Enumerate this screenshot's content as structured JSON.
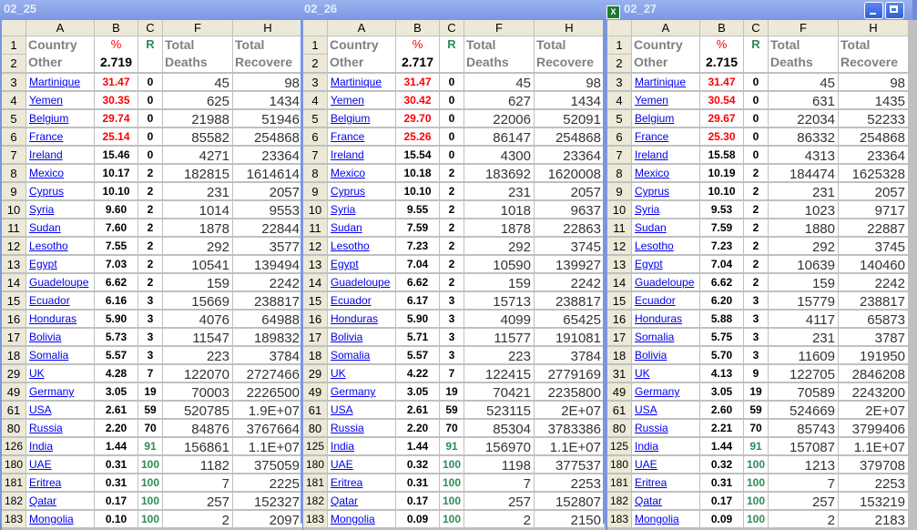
{
  "colors": {
    "pct_high": "#ff0000",
    "pct_normal": "#000000",
    "r_label": "#2e8b57",
    "r_high": "#2e8b57",
    "r_normal": "#000000",
    "link": "#0000ee"
  },
  "windows": [
    {
      "title": "02_25",
      "col_headers": [
        "A",
        "B",
        "C",
        "F",
        "H"
      ],
      "header": {
        "row1": "1",
        "row2": "2",
        "country": "Country",
        "other": "Other",
        "pct_label": "%",
        "pct_value": "2.719",
        "r_label": "R",
        "deaths_1": "Total",
        "deaths_2": "Deaths",
        "rec_1": "Total",
        "rec_2": "Recovere"
      },
      "rows": [
        [
          "3",
          "Martinique",
          "31.47",
          "0",
          "45",
          "98"
        ],
        [
          "4",
          "Yemen",
          "30.35",
          "0",
          "625",
          "1434"
        ],
        [
          "5",
          "Belgium",
          "29.74",
          "0",
          "21988",
          "51946"
        ],
        [
          "6",
          "France",
          "25.14",
          "0",
          "85582",
          "254868"
        ],
        [
          "7",
          "Ireland",
          "15.46",
          "0",
          "4271",
          "23364"
        ],
        [
          "8",
          "Mexico",
          "10.17",
          "2",
          "182815",
          "1614614"
        ],
        [
          "9",
          "Cyprus",
          "10.10",
          "2",
          "231",
          "2057"
        ],
        [
          "10",
          "Syria",
          "9.60",
          "2",
          "1014",
          "9553"
        ],
        [
          "11",
          "Sudan",
          "7.60",
          "2",
          "1878",
          "22844"
        ],
        [
          "12",
          "Lesotho",
          "7.55",
          "2",
          "292",
          "3577"
        ],
        [
          "13",
          "Egypt",
          "7.03",
          "2",
          "10541",
          "139494"
        ],
        [
          "14",
          "Guadeloupe",
          "6.62",
          "2",
          "159",
          "2242"
        ],
        [
          "15",
          "Ecuador",
          "6.16",
          "3",
          "15669",
          "238817"
        ],
        [
          "16",
          "Honduras",
          "5.90",
          "3",
          "4076",
          "64988"
        ],
        [
          "17",
          "Bolivia",
          "5.73",
          "3",
          "11547",
          "189832"
        ],
        [
          "18",
          "Somalia",
          "5.57",
          "3",
          "223",
          "3784"
        ],
        [
          "29",
          "UK",
          "4.28",
          "7",
          "122070",
          "2727466"
        ],
        [
          "49",
          "Germany",
          "3.05",
          "19",
          "70003",
          "2226500"
        ],
        [
          "61",
          "USA",
          "2.61",
          "59",
          "520785",
          "1.9E+07"
        ],
        [
          "80",
          "Russia",
          "2.20",
          "70",
          "84876",
          "3767664"
        ],
        [
          "126",
          "India",
          "1.44",
          "91",
          "156861",
          "1.1E+07"
        ],
        [
          "180",
          "UAE",
          "0.31",
          "100",
          "1182",
          "375059"
        ],
        [
          "181",
          "Eritrea",
          "0.31",
          "100",
          "7",
          "2225"
        ],
        [
          "182",
          "Qatar",
          "0.17",
          "100",
          "257",
          "152327"
        ],
        [
          "183",
          "Mongolia",
          "0.10",
          "100",
          "2",
          "2097"
        ]
      ]
    },
    {
      "title": "02_26",
      "col_headers": [
        "A",
        "B",
        "C",
        "F",
        "H"
      ],
      "header": {
        "row1": "1",
        "row2": "2",
        "country": "Country",
        "other": "Other",
        "pct_label": "%",
        "pct_value": "2.717",
        "r_label": "R",
        "deaths_1": "Total",
        "deaths_2": "Deaths",
        "rec_1": "Total",
        "rec_2": "Recovere"
      },
      "rows": [
        [
          "3",
          "Martinique",
          "31.47",
          "0",
          "45",
          "98"
        ],
        [
          "4",
          "Yemen",
          "30.42",
          "0",
          "627",
          "1434"
        ],
        [
          "5",
          "Belgium",
          "29.70",
          "0",
          "22006",
          "52091"
        ],
        [
          "6",
          "France",
          "25.26",
          "0",
          "86147",
          "254868"
        ],
        [
          "7",
          "Ireland",
          "15.54",
          "0",
          "4300",
          "23364"
        ],
        [
          "8",
          "Mexico",
          "10.18",
          "2",
          "183692",
          "1620008"
        ],
        [
          "9",
          "Cyprus",
          "10.10",
          "2",
          "231",
          "2057"
        ],
        [
          "10",
          "Syria",
          "9.55",
          "2",
          "1018",
          "9637"
        ],
        [
          "11",
          "Sudan",
          "7.59",
          "2",
          "1878",
          "22863"
        ],
        [
          "12",
          "Lesotho",
          "7.23",
          "2",
          "292",
          "3745"
        ],
        [
          "13",
          "Egypt",
          "7.04",
          "2",
          "10590",
          "139927"
        ],
        [
          "14",
          "Guadeloupe",
          "6.62",
          "2",
          "159",
          "2242"
        ],
        [
          "15",
          "Ecuador",
          "6.17",
          "3",
          "15713",
          "238817"
        ],
        [
          "16",
          "Honduras",
          "5.90",
          "3",
          "4099",
          "65425"
        ],
        [
          "17",
          "Bolivia",
          "5.71",
          "3",
          "11577",
          "191081"
        ],
        [
          "18",
          "Somalia",
          "5.57",
          "3",
          "223",
          "3784"
        ],
        [
          "29",
          "UK",
          "4.22",
          "7",
          "122415",
          "2779169"
        ],
        [
          "49",
          "Germany",
          "3.05",
          "19",
          "70421",
          "2235800"
        ],
        [
          "61",
          "USA",
          "2.61",
          "59",
          "523115",
          "2E+07"
        ],
        [
          "80",
          "Russia",
          "2.20",
          "70",
          "85304",
          "3783386"
        ],
        [
          "125",
          "India",
          "1.44",
          "91",
          "156970",
          "1.1E+07"
        ],
        [
          "180",
          "UAE",
          "0.32",
          "100",
          "1198",
          "377537"
        ],
        [
          "181",
          "Eritrea",
          "0.31",
          "100",
          "7",
          "2253"
        ],
        [
          "182",
          "Qatar",
          "0.17",
          "100",
          "257",
          "152807"
        ],
        [
          "183",
          "Mongolia",
          "0.09",
          "100",
          "2",
          "2150"
        ]
      ]
    },
    {
      "title": "02_27",
      "col_headers": [
        "A",
        "B",
        "C",
        "F",
        "H"
      ],
      "header": {
        "row1": "1",
        "row2": "2",
        "country": "Country",
        "other": "Other",
        "pct_label": "%",
        "pct_value": "2.715",
        "r_label": "R",
        "deaths_1": "Total",
        "deaths_2": "Deaths",
        "rec_1": "Total",
        "rec_2": "Recovere"
      },
      "rows": [
        [
          "3",
          "Martinique",
          "31.47",
          "0",
          "45",
          "98"
        ],
        [
          "4",
          "Yemen",
          "30.54",
          "0",
          "631",
          "1435"
        ],
        [
          "5",
          "Belgium",
          "29.67",
          "0",
          "22034",
          "52233"
        ],
        [
          "6",
          "France",
          "25.30",
          "0",
          "86332",
          "254868"
        ],
        [
          "7",
          "Ireland",
          "15.58",
          "0",
          "4313",
          "23364"
        ],
        [
          "8",
          "Mexico",
          "10.19",
          "2",
          "184474",
          "1625328"
        ],
        [
          "9",
          "Cyprus",
          "10.10",
          "2",
          "231",
          "2057"
        ],
        [
          "10",
          "Syria",
          "9.53",
          "2",
          "1023",
          "9717"
        ],
        [
          "11",
          "Sudan",
          "7.59",
          "2",
          "1880",
          "22887"
        ],
        [
          "12",
          "Lesotho",
          "7.23",
          "2",
          "292",
          "3745"
        ],
        [
          "13",
          "Egypt",
          "7.04",
          "2",
          "10639",
          "140460"
        ],
        [
          "14",
          "Guadeloupe",
          "6.62",
          "2",
          "159",
          "2242"
        ],
        [
          "15",
          "Ecuador",
          "6.20",
          "3",
          "15779",
          "238817"
        ],
        [
          "16",
          "Honduras",
          "5.88",
          "3",
          "4117",
          "65873"
        ],
        [
          "17",
          "Somalia",
          "5.75",
          "3",
          "231",
          "3787"
        ],
        [
          "18",
          "Bolivia",
          "5.70",
          "3",
          "11609",
          "191950"
        ],
        [
          "31",
          "UK",
          "4.13",
          "9",
          "122705",
          "2846208"
        ],
        [
          "49",
          "Germany",
          "3.05",
          "19",
          "70589",
          "2243200"
        ],
        [
          "61",
          "USA",
          "2.60",
          "59",
          "524669",
          "2E+07"
        ],
        [
          "80",
          "Russia",
          "2.21",
          "70",
          "85743",
          "3799406"
        ],
        [
          "125",
          "India",
          "1.44",
          "91",
          "157087",
          "1.1E+07"
        ],
        [
          "180",
          "UAE",
          "0.32",
          "100",
          "1213",
          "379708"
        ],
        [
          "181",
          "Eritrea",
          "0.31",
          "100",
          "7",
          "2253"
        ],
        [
          "182",
          "Qatar",
          "0.17",
          "100",
          "257",
          "153219"
        ],
        [
          "183",
          "Mongolia",
          "0.09",
          "100",
          "2",
          "2183"
        ]
      ],
      "title_icon": "excel-icon",
      "title_buttons": [
        "minimize-button",
        "maximize-button"
      ]
    }
  ]
}
